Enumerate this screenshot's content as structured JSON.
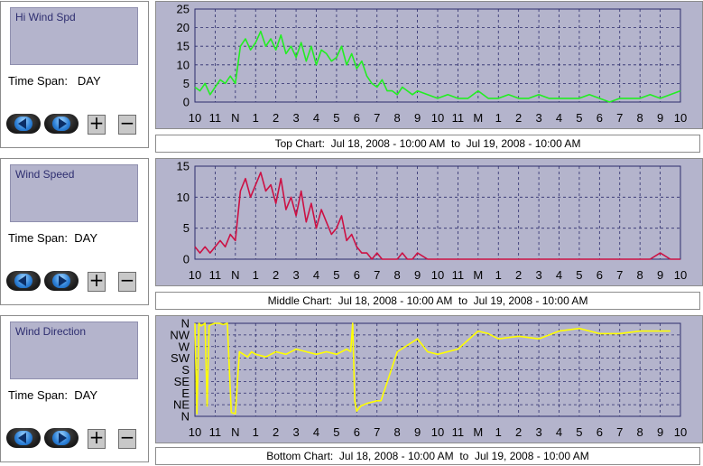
{
  "panels": [
    {
      "selector_label": "Hi Wind Spd",
      "time_span_label": "Time Span:",
      "time_span_value": "DAY",
      "caption": "Top Chart:  Jul 18, 2008 - 10:00 AM  to  Jul 19, 2008 - 10:00 AM"
    },
    {
      "selector_label": "Wind Speed",
      "time_span_label": "Time Span:",
      "time_span_value": "DAY",
      "caption": "Middle Chart:  Jul 18, 2008 - 10:00 AM  to  Jul 19, 2008 - 10:00 AM"
    },
    {
      "selector_label": "Wind Direction",
      "time_span_label": "Time Span:",
      "time_span_value": "DAY",
      "caption": "Bottom Chart:  Jul 18, 2008 - 10:00 AM  to  Jul 19, 2008 - 10:00 AM"
    }
  ],
  "controls": {
    "prev_icon": "back-arrow-icon",
    "next_icon": "forward-arrow-icon",
    "zoom_in": "+",
    "zoom_out": "−"
  },
  "colors": {
    "plot_background": "#b4b4cc",
    "grid": "#2c2c6c",
    "hi_wind": "#22ee22",
    "wind_speed": "#cc1144",
    "wind_direction": "#ffff00"
  },
  "chart_data": [
    {
      "type": "line",
      "series_color": "#22ee22",
      "x_ticks": [
        "10",
        "11",
        "N",
        "1",
        "2",
        "3",
        "4",
        "5",
        "6",
        "7",
        "8",
        "9",
        "10",
        "11",
        "M",
        "1",
        "2",
        "3",
        "4",
        "5",
        "6",
        "7",
        "8",
        "9",
        "10"
      ],
      "ylim": [
        0,
        25
      ],
      "y_ticks": [
        0,
        5,
        10,
        15,
        20,
        25
      ],
      "grid": true,
      "x": [
        0,
        0.25,
        0.5,
        0.75,
        1,
        1.25,
        1.5,
        1.75,
        2,
        2.25,
        2.5,
        2.75,
        3,
        3.25,
        3.5,
        3.75,
        4,
        4.25,
        4.5,
        4.75,
        5,
        5.25,
        5.5,
        5.75,
        6,
        6.25,
        6.5,
        6.75,
        7,
        7.25,
        7.5,
        7.75,
        8,
        8.25,
        8.5,
        8.75,
        9,
        9.25,
        9.5,
        9.75,
        10,
        10.25,
        10.5,
        10.75,
        11,
        11.5,
        12,
        12.5,
        13,
        13.5,
        14,
        14.5,
        15,
        15.5,
        16,
        16.5,
        17,
        17.5,
        18,
        18.5,
        19,
        19.5,
        20,
        20.5,
        21,
        21.5,
        22,
        22.5,
        23,
        23.5,
        24
      ],
      "values": [
        4,
        3,
        5,
        2,
        4,
        6,
        5,
        7,
        5,
        15,
        17,
        14,
        16,
        19,
        15,
        17,
        14,
        18,
        13,
        15,
        12,
        16,
        11,
        15,
        10,
        14,
        13,
        11,
        12,
        15,
        10,
        13,
        9,
        11,
        7,
        5,
        4,
        6,
        3,
        3,
        2,
        4,
        3,
        2,
        3,
        2,
        1,
        2,
        1,
        1,
        3,
        1,
        1,
        2,
        1,
        1,
        2,
        1,
        1,
        1,
        1,
        2,
        1,
        0,
        1,
        1,
        1,
        2,
        1,
        2,
        3
      ]
    },
    {
      "type": "line",
      "series_color": "#cc1144",
      "x_ticks": [
        "10",
        "11",
        "N",
        "1",
        "2",
        "3",
        "4",
        "5",
        "6",
        "7",
        "8",
        "9",
        "10",
        "11",
        "M",
        "1",
        "2",
        "3",
        "4",
        "5",
        "6",
        "7",
        "8",
        "9",
        "10"
      ],
      "ylim": [
        0,
        15
      ],
      "y_ticks": [
        0,
        5,
        10,
        15
      ],
      "grid": true,
      "x": [
        0,
        0.25,
        0.5,
        0.75,
        1,
        1.25,
        1.5,
        1.75,
        2,
        2.25,
        2.5,
        2.75,
        3,
        3.25,
        3.5,
        3.75,
        4,
        4.25,
        4.5,
        4.75,
        5,
        5.25,
        5.5,
        5.75,
        6,
        6.25,
        6.5,
        6.75,
        7,
        7.25,
        7.5,
        7.75,
        8,
        8.25,
        8.5,
        8.75,
        9,
        9.25,
        9.5,
        9.75,
        10,
        10.25,
        10.5,
        10.75,
        11,
        11.5,
        12,
        12.5,
        13,
        13.5,
        14,
        14.5,
        15,
        15.5,
        16,
        16.5,
        17,
        17.5,
        18,
        18.5,
        19,
        19.5,
        20,
        20.5,
        21,
        21.5,
        22,
        22.5,
        23,
        23.5,
        24
      ],
      "values": [
        2,
        1,
        2,
        1,
        2,
        3,
        2,
        4,
        3,
        11,
        13,
        10,
        12,
        14,
        11,
        12,
        9,
        13,
        8,
        10,
        7,
        11,
        6,
        9,
        5,
        8,
        6,
        4,
        5,
        7,
        3,
        4,
        2,
        1,
        1,
        0,
        1,
        0,
        0,
        0,
        0,
        1,
        0,
        0,
        1,
        0,
        0,
        0,
        0,
        0,
        0,
        0,
        0,
        0,
        0,
        0,
        0,
        0,
        0,
        0,
        0,
        0,
        0,
        0,
        0,
        0,
        0,
        0,
        1,
        0,
        0
      ]
    },
    {
      "type": "line",
      "series_color": "#ffff00",
      "x_ticks": [
        "10",
        "11",
        "N",
        "1",
        "2",
        "3",
        "4",
        "5",
        "6",
        "7",
        "8",
        "9",
        "10",
        "11",
        "M",
        "1",
        "2",
        "3",
        "4",
        "5",
        "6",
        "7",
        "8",
        "9",
        "10"
      ],
      "y_ticks": [
        "N",
        "NE",
        "E",
        "SE",
        "S",
        "SW",
        "W",
        "NW",
        "N"
      ],
      "ylim": [
        0,
        360
      ],
      "grid": true,
      "x": [
        0,
        0.1,
        0.2,
        0.3,
        0.4,
        0.5,
        0.6,
        0.7,
        0.8,
        1,
        1.2,
        1.4,
        1.6,
        1.8,
        2,
        2.2,
        2.4,
        2.6,
        2.8,
        3,
        3.5,
        4,
        4.5,
        5,
        5.5,
        6,
        6.5,
        7,
        7.5,
        7.7,
        7.8,
        7.9,
        8,
        8.2,
        8.5,
        9,
        9.2,
        10,
        11,
        11.5,
        12,
        13,
        14,
        14.5,
        15,
        16,
        17,
        18,
        19,
        20,
        21,
        22,
        23,
        23.5
      ],
      "values": [
        360,
        10,
        360,
        350,
        355,
        360,
        40,
        350,
        355,
        360,
        360,
        355,
        360,
        15,
        10,
        250,
        240,
        230,
        250,
        240,
        230,
        250,
        240,
        260,
        250,
        240,
        250,
        240,
        260,
        250,
        360,
        60,
        20,
        40,
        50,
        60,
        60,
        250,
        300,
        250,
        240,
        260,
        330,
        320,
        300,
        310,
        300,
        330,
        340,
        320,
        320,
        330,
        330,
        330
      ]
    }
  ]
}
